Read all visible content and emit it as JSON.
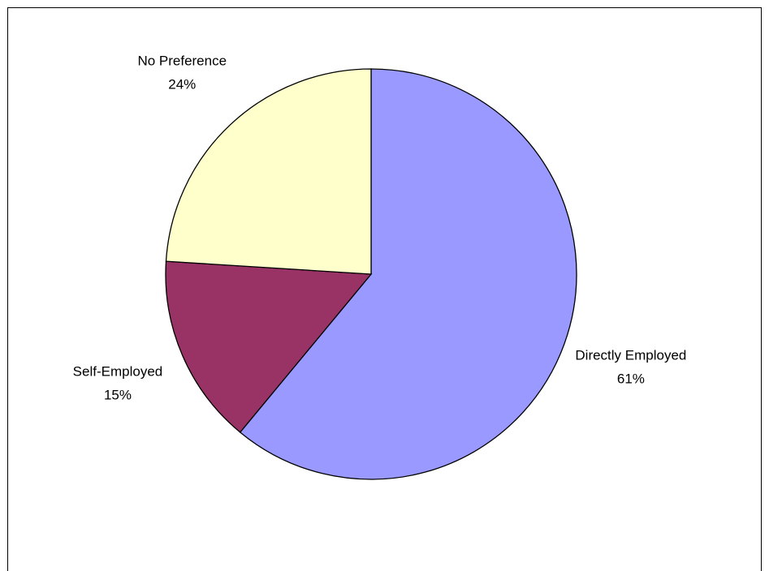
{
  "chart_data": {
    "type": "pie",
    "categories": [
      "Directly Employed",
      "Self-Employed",
      "No Preference"
    ],
    "values": [
      61,
      15,
      24
    ],
    "value_labels": [
      "61%",
      "15%",
      "24%"
    ],
    "colors": [
      "#9999ff",
      "#993366",
      "#ffffcc"
    ]
  }
}
